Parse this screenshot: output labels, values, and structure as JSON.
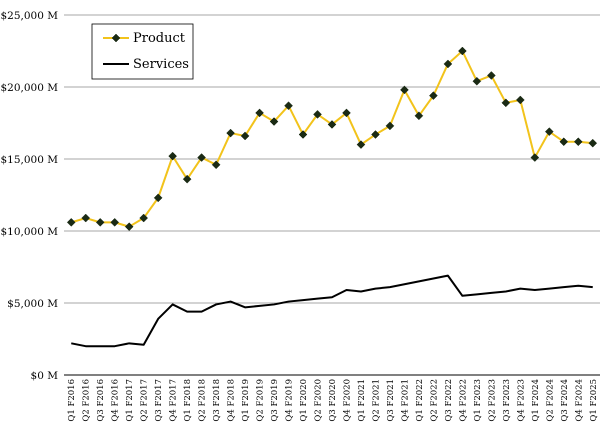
{
  "chart_data": {
    "type": "line",
    "title": "",
    "xlabel": "",
    "ylabel": "",
    "ylim": [
      0,
      25000
    ],
    "yticks": [
      0,
      5000,
      10000,
      15000,
      20000,
      25000
    ],
    "ytick_labels": [
      "$0 M",
      "$5,000 M",
      "$10,000 M",
      "$15,000 M",
      "$20,000 M",
      "$25,000 M"
    ],
    "grid": "horizontal",
    "legend_position": "top-left",
    "categories": [
      "Q1 F2016",
      "Q2 F2016",
      "Q3 F2016",
      "Q4 F2016",
      "Q1 F2017",
      "Q2 F2017",
      "Q3 F2017",
      "Q4 F2017",
      "Q1 F2018",
      "Q2 F2018",
      "Q3 F2018",
      "Q4 F2018",
      "Q1 F2019",
      "Q2 F2019",
      "Q3 F2019",
      "Q4 F2019",
      "Q1 F2020",
      "Q2 F2020",
      "Q3 F2020",
      "Q4 F2020",
      "Q1 F2021",
      "Q2 F2021",
      "Q3 F2021",
      "Q4 F2021",
      "Q1 F2022",
      "Q2 F2022",
      "Q3 F2022",
      "Q4 F2022",
      "Q1 F2023",
      "Q2 F2023",
      "Q3 F2023",
      "Q4 F2023",
      "Q1 F2024",
      "Q2 F2024",
      "Q3 F2024",
      "Q4 F2024",
      "Q1 F2025"
    ],
    "series": [
      {
        "name": "Product",
        "color": "#f2c31b",
        "marker_color": "#1a2a14",
        "values": [
          10600,
          10900,
          10600,
          10600,
          10300,
          10900,
          12300,
          15200,
          13600,
          15100,
          14600,
          16800,
          16600,
          18200,
          17600,
          18700,
          16700,
          18100,
          17400,
          18200,
          16000,
          16700,
          17300,
          19800,
          18000,
          19400,
          21600,
          22500,
          20400,
          20800,
          18900,
          19100,
          15100,
          16900,
          16200,
          16200,
          16100
        ]
      },
      {
        "name": "Services",
        "color": "#000000",
        "values": [
          2200,
          2000,
          2000,
          2000,
          2200,
          2100,
          3900,
          4900,
          4400,
          4400,
          4900,
          5100,
          4700,
          4800,
          4900,
          5100,
          5200,
          5300,
          5400,
          5900,
          5800,
          6000,
          6100,
          6300,
          6500,
          6700,
          6900,
          5500,
          5600,
          5700,
          5800,
          6000,
          5900,
          6000,
          6100,
          6200,
          6100
        ]
      }
    ]
  }
}
